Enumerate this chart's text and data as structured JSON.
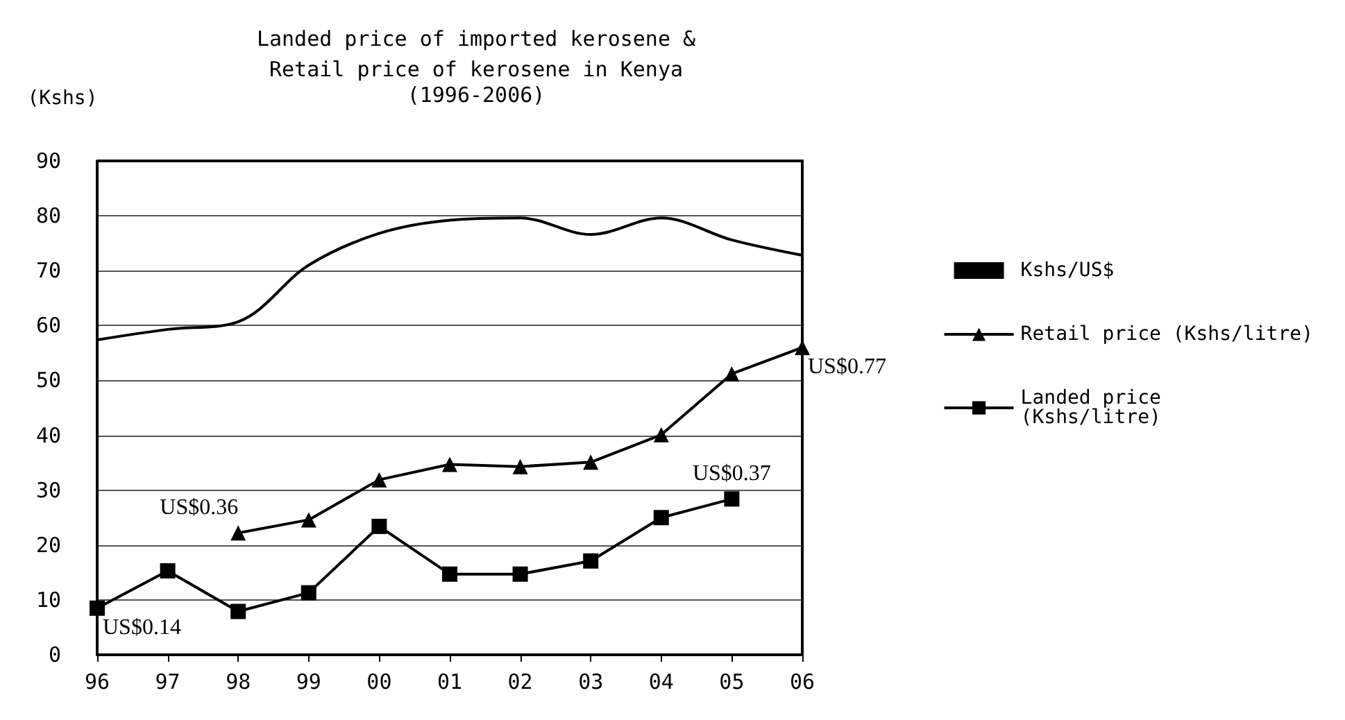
{
  "chart_data": {
    "type": "line",
    "title": "Landed price of imported kerosene &\nRetail price of kerosene in Kenya",
    "subtitle": "(1996-2006)",
    "ylabel": "(Kshs)",
    "categories": [
      "96",
      "97",
      "98",
      "99",
      "00",
      "01",
      "02",
      "03",
      "04",
      "05",
      "06"
    ],
    "series": [
      {
        "name": "Kshs/US$",
        "color": "#000000",
        "marker": "none",
        "values": [
          57.4,
          59.3,
          60.7,
          71.0,
          76.8,
          79.2,
          79.6,
          76.6,
          79.6,
          75.6,
          72.8
        ]
      },
      {
        "name": "Retail price (Kshs/litre)",
        "color": "#000000",
        "marker": "triangle",
        "values": [
          null,
          null,
          22.2,
          24.6,
          31.9,
          34.7,
          34.3,
          35.1,
          40.1,
          51.2,
          56.0
        ]
      },
      {
        "name": "Landed price\n(Kshs/litre)",
        "color": "#000000",
        "marker": "square",
        "values": [
          8.5,
          15.3,
          7.9,
          11.3,
          23.4,
          14.7,
          14.7,
          17.1,
          25.0,
          28.4,
          null
        ]
      }
    ],
    "ylim": [
      0,
      90
    ],
    "yticks": [
      0,
      10,
      20,
      30,
      40,
      50,
      60,
      70,
      80,
      90
    ],
    "grid": "y",
    "legend": "right",
    "annotations": [
      {
        "text": "US$0.14",
        "x": "96",
        "y": 8.5
      },
      {
        "text": "US$0.36",
        "x": "98",
        "y": 22.2
      },
      {
        "text": "US$0.37",
        "x": "05",
        "y": 28.4
      },
      {
        "text": "US$0.77",
        "x": "06",
        "y": 56.0
      }
    ]
  }
}
